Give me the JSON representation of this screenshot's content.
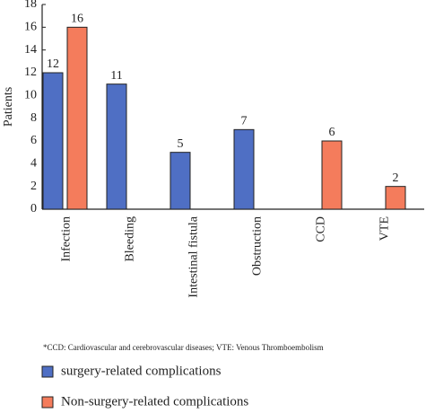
{
  "chart_data": {
    "type": "bar",
    "y_label": "Patients",
    "categories": [
      "Infection",
      "Bleeding",
      "Intestinal fistula",
      "Obstruction",
      "CCD",
      "VTE"
    ],
    "series": [
      {
        "name": "surgery-related complications",
        "color": "#4f6fc4",
        "values": [
          12,
          11,
          5,
          7,
          null,
          null
        ]
      },
      {
        "name": "Non-surgery-related complications",
        "color": "#f47c5c",
        "values": [
          16,
          null,
          null,
          null,
          6,
          2
        ]
      }
    ],
    "ylim": [
      0,
      18
    ],
    "yticks": [
      0,
      2,
      4,
      6,
      8,
      10,
      12,
      14,
      16,
      18
    ],
    "footnote": "*CCD: Cardiovascular and cerebrovascular diseases; VTE: Venous Thromboembolism"
  }
}
